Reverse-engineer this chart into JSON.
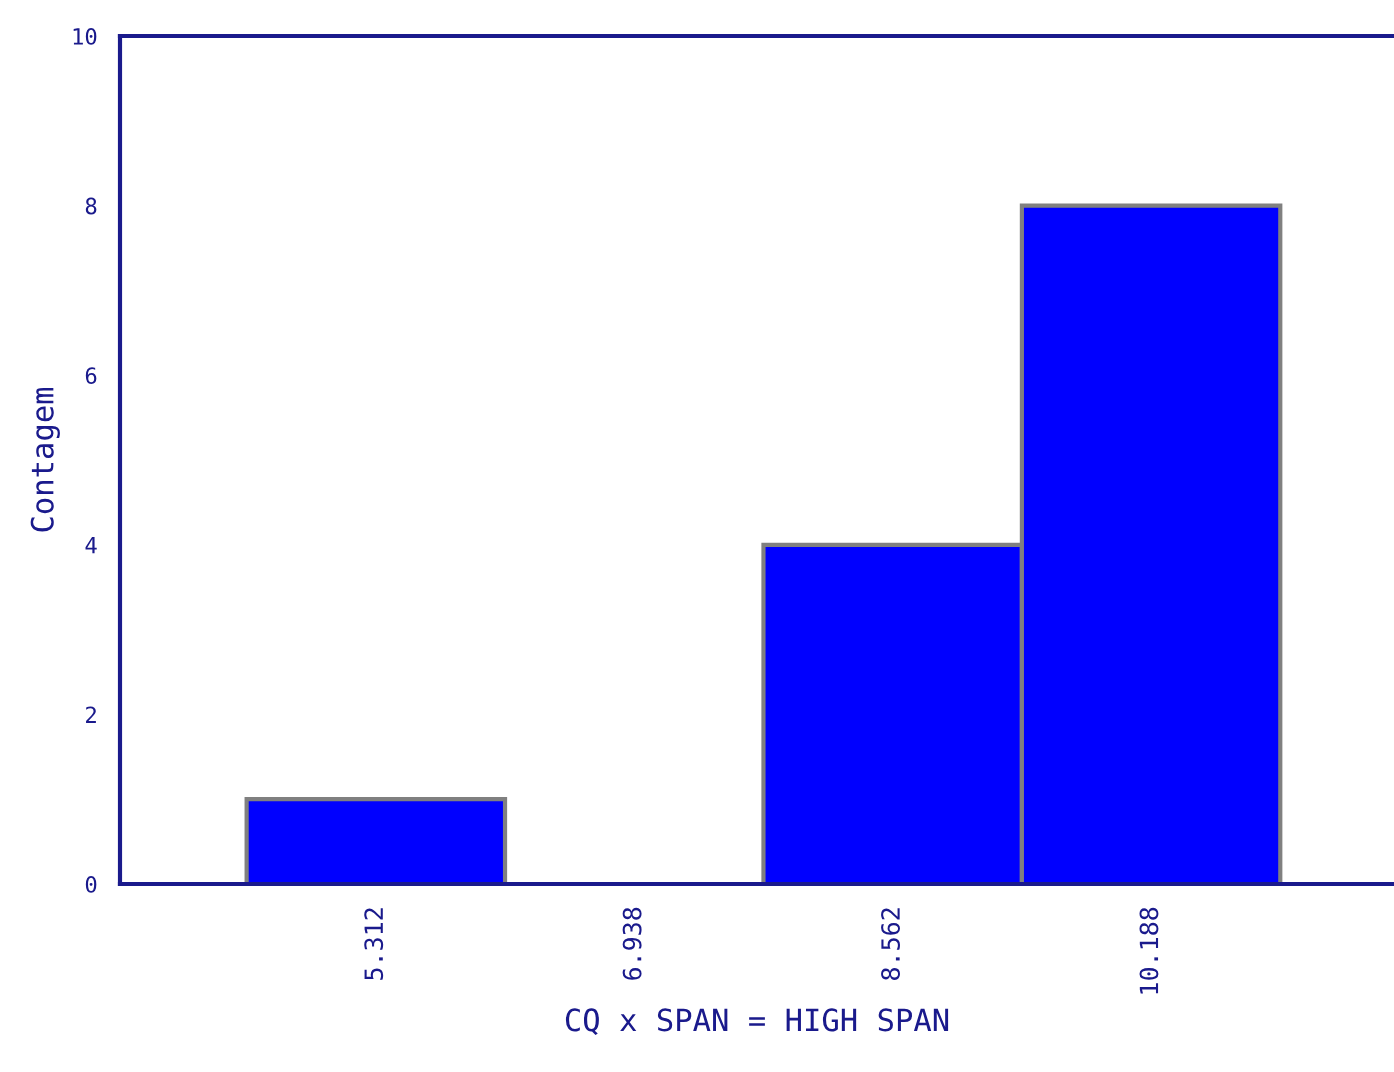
{
  "chart_data": {
    "type": "bar",
    "xlabel": "CQ x SPAN = HIGH SPAN",
    "ylabel": "Contagem",
    "categories": [
      "5.312",
      "6.938",
      "8.562",
      "10.188"
    ],
    "values": [
      1,
      0,
      4,
      8
    ],
    "color": "#0000ff",
    "ylim": [
      0,
      10
    ],
    "yticks": [
      0,
      2,
      4,
      6,
      8,
      10
    ],
    "grid": false,
    "legend": false
  }
}
